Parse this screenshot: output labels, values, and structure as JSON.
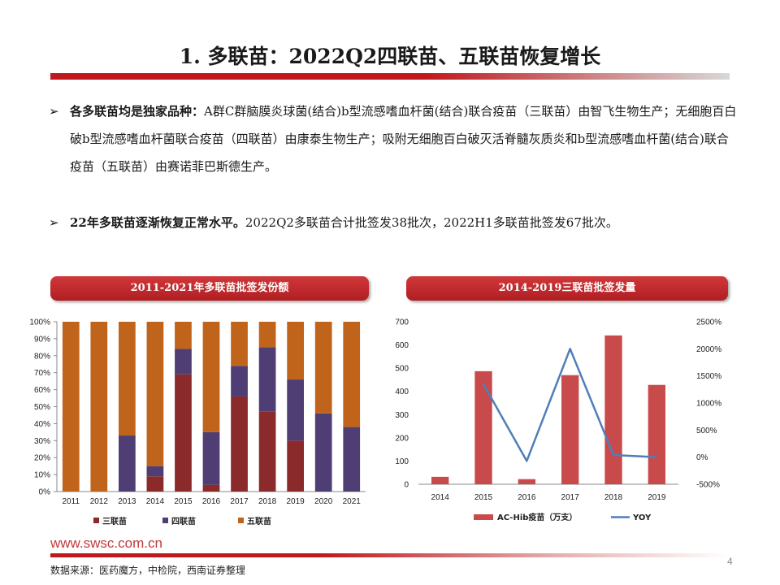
{
  "page": {
    "title": "1. 多联苗：2022Q2四联苗、五联苗恢复增长",
    "bullets": [
      {
        "marker": "➢",
        "bold": "各多联苗均是独家品种：",
        "text": "A群C群脑膜炎球菌(结合)b型流感嗜血杆菌(结合)联合疫苗（三联苗）由智飞生物生产；无细胞百白破b型流感嗜血杆菌联合疫苗（四联苗）由康泰生物生产；吸附无细胞百白破灭活脊髓灰质炎和b型流感嗜血杆菌(结合)联合疫苗（五联苗）由赛诺菲巴斯德生产。"
      },
      {
        "marker": "➢",
        "bold": "22年多联苗逐渐恢复正常水平。",
        "text": "2022Q2多联苗合计批签发38批次，2022H1多联苗批签发67批次。"
      }
    ],
    "footer_url": "www.swsc.com.cn",
    "page_number": "4",
    "source": "数据来源：医药魔方，中检院，西南证券整理"
  },
  "chart_data": [
    {
      "type": "bar",
      "stacked": true,
      "title": "2011-2021年多联苗批签发份额",
      "categories": [
        "2011",
        "2012",
        "2013",
        "2014",
        "2015",
        "2016",
        "2017",
        "2018",
        "2019",
        "2020",
        "2021"
      ],
      "series": [
        {
          "name": "三联苗",
          "color": "#8b2a2a",
          "values": [
            0,
            0,
            0,
            9,
            69,
            4,
            56,
            47,
            30,
            0,
            0
          ]
        },
        {
          "name": "四联苗",
          "color": "#4f3e74",
          "values": [
            0,
            0,
            33,
            6,
            15,
            31,
            18,
            38,
            36,
            46,
            38
          ]
        },
        {
          "name": "五联苗",
          "color": "#c0641c",
          "values": [
            100,
            100,
            67,
            85,
            16,
            65,
            26,
            15,
            34,
            54,
            62
          ]
        }
      ],
      "y_ticks": [
        "0%",
        "10%",
        "20%",
        "30%",
        "40%",
        "50%",
        "60%",
        "70%",
        "80%",
        "90%",
        "100%"
      ],
      "ylim": [
        0,
        100
      ],
      "legend_position": "bottom"
    },
    {
      "type": "bar",
      "title": "2014-2019三联苗批签发量",
      "categories": [
        "2014",
        "2015",
        "2016",
        "2017",
        "2018",
        "2019"
      ],
      "series": [
        {
          "name": "AC-Hib疫苗（万支）",
          "type": "bar",
          "axis": "left",
          "color": "#c94a4a",
          "values": [
            32,
            487,
            22,
            470,
            641,
            428
          ]
        },
        {
          "name": "YOY",
          "type": "line",
          "axis": "right",
          "color": "#4f7eb8",
          "values": [
            null,
            1350,
            -70,
            2000,
            40,
            0
          ]
        }
      ],
      "y_left_ticks": [
        "0",
        "100",
        "200",
        "300",
        "400",
        "500",
        "600",
        "700"
      ],
      "ylim_left": [
        0,
        700
      ],
      "y_right_ticks": [
        "-500%",
        "0%",
        "500%",
        "1000%",
        "1500%",
        "2000%",
        "2500%"
      ],
      "ylim_right": [
        -500,
        2500
      ],
      "legend_position": "bottom"
    }
  ]
}
